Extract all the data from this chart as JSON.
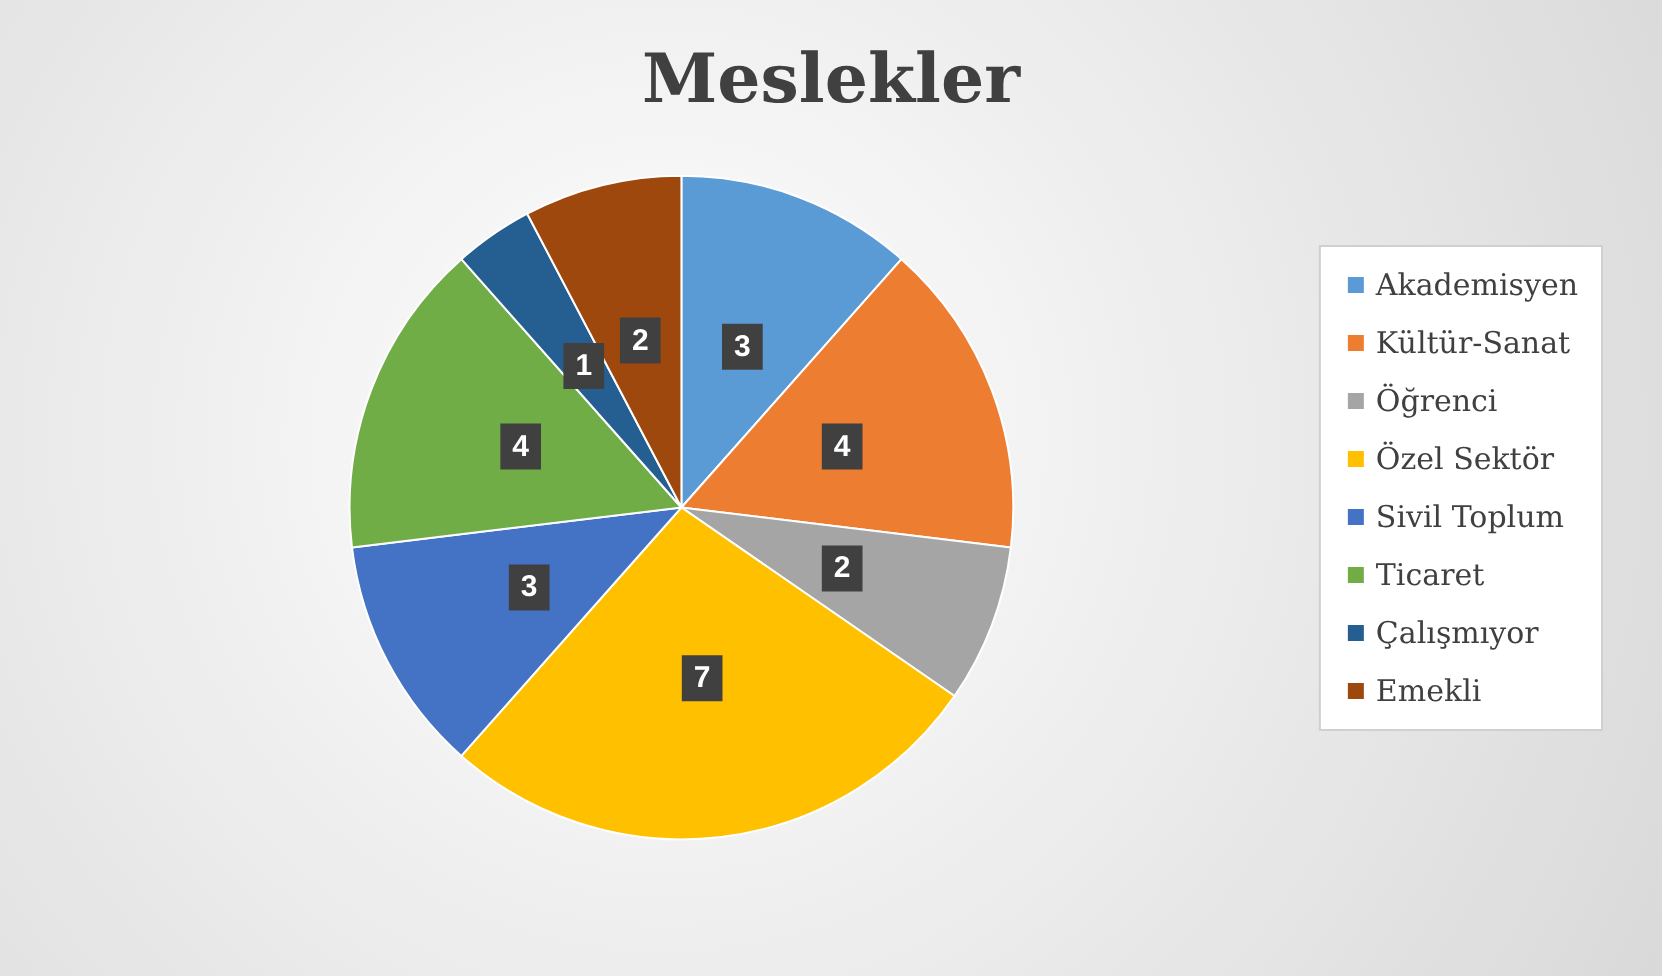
{
  "chart_data": {
    "type": "pie",
    "title": "Meslekler",
    "categories": [
      "Akademisyen",
      "Kültür-Sanat",
      "Öğrenci",
      "Özel Sektör",
      "Sivil Toplum",
      "Ticaret",
      "Çalışmıyor",
      "Emekli"
    ],
    "values": [
      3,
      4,
      2,
      7,
      3,
      4,
      1,
      2
    ],
    "colors": [
      "#5b9bd5",
      "#ed7d31",
      "#a5a5a5",
      "#ffc000",
      "#4472c4",
      "#70ad47",
      "#255e91",
      "#9e480e"
    ],
    "data_labels": true,
    "legend": "right"
  }
}
